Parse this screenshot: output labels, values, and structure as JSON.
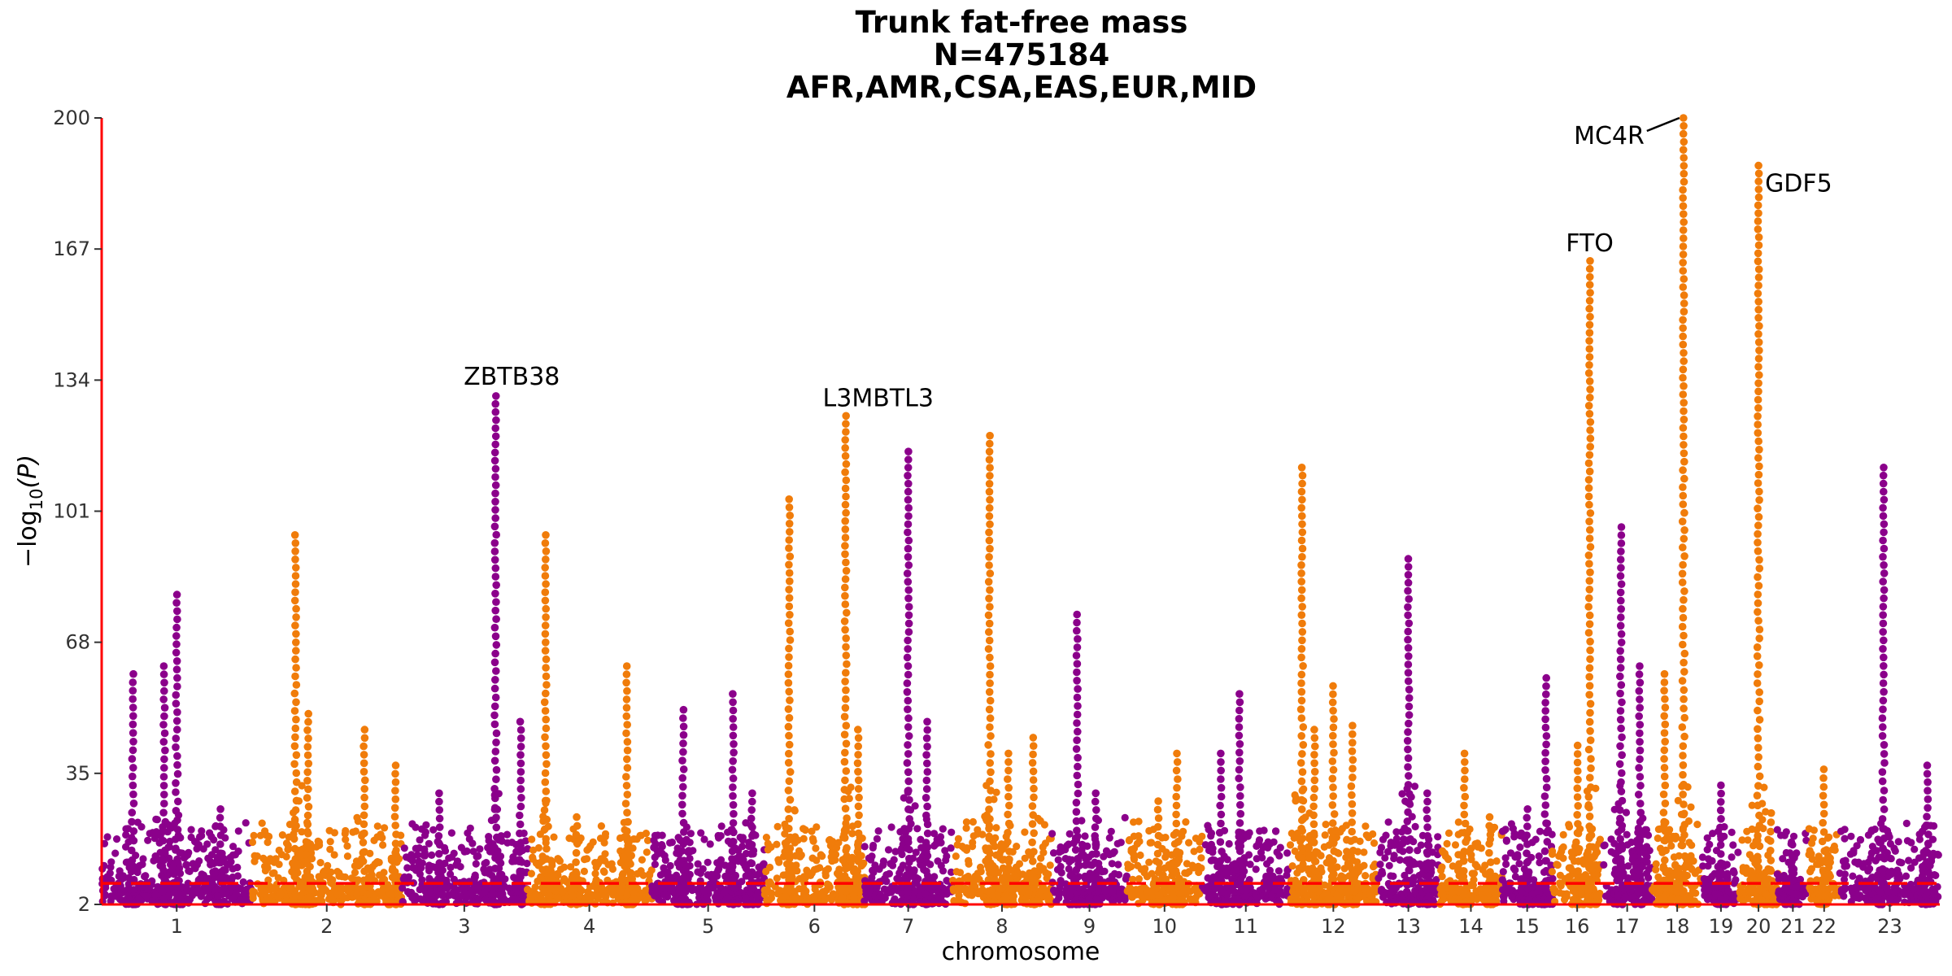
{
  "chart_data": {
    "type": "scatter",
    "subtype": "manhattan",
    "title_lines": [
      "Trunk fat-free mass",
      "N=475184",
      "AFR,AMR,CSA,EAS,EUR,MID"
    ],
    "xlabel": "chromosome",
    "ylabel": "−log10(P)",
    "ylim": [
      2,
      200
    ],
    "yticks": [
      2,
      35,
      68,
      101,
      134,
      167,
      200
    ],
    "threshold": 7.3,
    "grid": false,
    "colors": {
      "odd": "#8b008b",
      "even": "#f07c0a",
      "threshold": "#ff0000",
      "axis": "#ff0000"
    },
    "chromosomes": [
      {
        "label": "1",
        "range": [
          0,
          12
        ],
        "peaks": [
          [
            2.5,
            60
          ],
          [
            5,
            62
          ],
          [
            6,
            80
          ],
          [
            9.5,
            26
          ]
        ]
      },
      {
        "label": "2",
        "range": [
          12,
          24
        ],
        "peaks": [
          [
            3.5,
            95
          ],
          [
            4.5,
            50
          ],
          [
            9,
            46
          ],
          [
            11.5,
            37
          ]
        ]
      },
      {
        "label": "3",
        "range": [
          24,
          34
        ],
        "peaks": [
          [
            7.5,
            130
          ],
          [
            3,
            30
          ],
          [
            9.5,
            48
          ]
        ]
      },
      {
        "label": "4",
        "range": [
          34,
          44
        ],
        "peaks": [
          [
            1.5,
            95
          ],
          [
            8,
            62
          ],
          [
            4,
            24
          ]
        ]
      },
      {
        "label": "5",
        "range": [
          44,
          53
        ],
        "peaks": [
          [
            2.5,
            51
          ],
          [
            6.5,
            55
          ],
          [
            8,
            30
          ]
        ]
      },
      {
        "label": "6",
        "range": [
          53,
          61
        ],
        "peaks": [
          [
            2,
            104
          ],
          [
            6.5,
            125
          ],
          [
            7.5,
            46
          ]
        ]
      },
      {
        "label": "7",
        "range": [
          61,
          68
        ],
        "peaks": [
          [
            3.5,
            116
          ],
          [
            5,
            48
          ]
        ]
      },
      {
        "label": "8",
        "range": [
          68,
          76
        ],
        "peaks": [
          [
            3,
            120
          ],
          [
            4.5,
            40
          ],
          [
            6.5,
            44
          ]
        ]
      },
      {
        "label": "9",
        "range": [
          76,
          82
        ],
        "peaks": [
          [
            2,
            75
          ],
          [
            3.5,
            30
          ]
        ]
      },
      {
        "label": "10",
        "range": [
          82,
          88
        ],
        "peaks": [
          [
            2.5,
            28
          ],
          [
            4,
            40
          ]
        ]
      },
      {
        "label": "11",
        "range": [
          88,
          95
        ],
        "peaks": [
          [
            1.5,
            40
          ],
          [
            3,
            55
          ]
        ]
      },
      {
        "label": "12",
        "range": [
          95,
          102
        ],
        "peaks": [
          [
            1,
            112
          ],
          [
            2,
            46
          ],
          [
            3.5,
            57
          ],
          [
            5,
            47
          ]
        ]
      },
      {
        "label": "13",
        "range": [
          102,
          107
        ],
        "peaks": [
          [
            2.5,
            89
          ],
          [
            4,
            30
          ]
        ]
      },
      {
        "label": "14",
        "range": [
          107,
          112
        ],
        "peaks": [
          [
            2,
            40
          ],
          [
            4,
            24
          ]
        ]
      },
      {
        "label": "15",
        "range": [
          112,
          116
        ],
        "peaks": [
          [
            2,
            26
          ],
          [
            3.5,
            59
          ]
        ]
      },
      {
        "label": "16",
        "range": [
          116,
          120
        ],
        "peaks": [
          [
            3,
            164
          ],
          [
            2,
            42
          ]
        ]
      },
      {
        "label": "17",
        "range": [
          120,
          124
        ],
        "peaks": [
          [
            1.5,
            97
          ],
          [
            3,
            62
          ]
        ]
      },
      {
        "label": "18",
        "range": [
          124,
          128
        ],
        "peaks": [
          [
            2.5,
            200
          ],
          [
            1,
            60
          ]
        ]
      },
      {
        "label": "19",
        "range": [
          128,
          131
        ],
        "peaks": [
          [
            1.5,
            32
          ]
        ]
      },
      {
        "label": "20",
        "range": [
          131,
          134
        ],
        "peaks": [
          [
            1.5,
            188
          ],
          [
            2.5,
            25
          ]
        ]
      },
      {
        "label": "21",
        "range": [
          134,
          136.5
        ],
        "peaks": [
          [
            1.2,
            14
          ]
        ]
      },
      {
        "label": "22",
        "range": [
          136.5,
          139
        ],
        "peaks": [
          [
            1.2,
            36
          ]
        ]
      },
      {
        "label": "23",
        "range": [
          139,
          147
        ],
        "peaks": [
          [
            3.5,
            112
          ],
          [
            7,
            37
          ]
        ]
      }
    ],
    "annotations": [
      {
        "text": "ZBTB38",
        "x": 31.5,
        "y": 130
      },
      {
        "text": "L3MBTL3",
        "x": 59.5,
        "y": 125
      },
      {
        "text": "FTO",
        "x": 119,
        "y": 164
      },
      {
        "text": "MC4R",
        "x": 126.5,
        "y": 200
      },
      {
        "text": "GDF5",
        "x": 132.5,
        "y": 188
      }
    ]
  }
}
